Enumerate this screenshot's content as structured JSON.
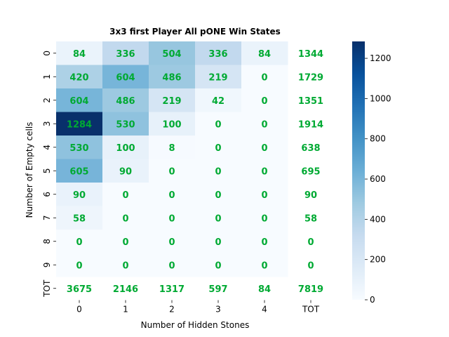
{
  "chart_data": {
    "type": "heatmap",
    "title": "3x3 first Player All pONE Win States",
    "xlabel": "Number of Hidden Stones",
    "ylabel": "Number of Empty cells",
    "x_categories": [
      "0",
      "1",
      "2",
      "3",
      "4",
      "TOT"
    ],
    "y_categories": [
      "0",
      "1",
      "2",
      "3",
      "4",
      "5",
      "6",
      "7",
      "8",
      "9",
      "TOT"
    ],
    "values": [
      [
        84,
        336,
        504,
        336,
        84,
        1344
      ],
      [
        420,
        604,
        486,
        219,
        0,
        1729
      ],
      [
        604,
        486,
        219,
        42,
        0,
        1351
      ],
      [
        1284,
        530,
        100,
        0,
        0,
        1914
      ],
      [
        530,
        100,
        8,
        0,
        0,
        638
      ],
      [
        605,
        90,
        0,
        0,
        0,
        695
      ],
      [
        90,
        0,
        0,
        0,
        0,
        90
      ],
      [
        58,
        0,
        0,
        0,
        0,
        58
      ],
      [
        0,
        0,
        0,
        0,
        0,
        0
      ],
      [
        0,
        0,
        0,
        0,
        0,
        0
      ],
      [
        3675,
        2146,
        1317,
        597,
        84,
        7819
      ]
    ],
    "masked_rows": [
      "TOT"
    ],
    "masked_columns": [
      "TOT"
    ],
    "colormap": "Blues",
    "color_range": [
      0,
      1284
    ],
    "colorbar_ticks": [
      0,
      200,
      400,
      600,
      800,
      1000,
      1200
    ],
    "annotation_color": "#00aa33"
  }
}
